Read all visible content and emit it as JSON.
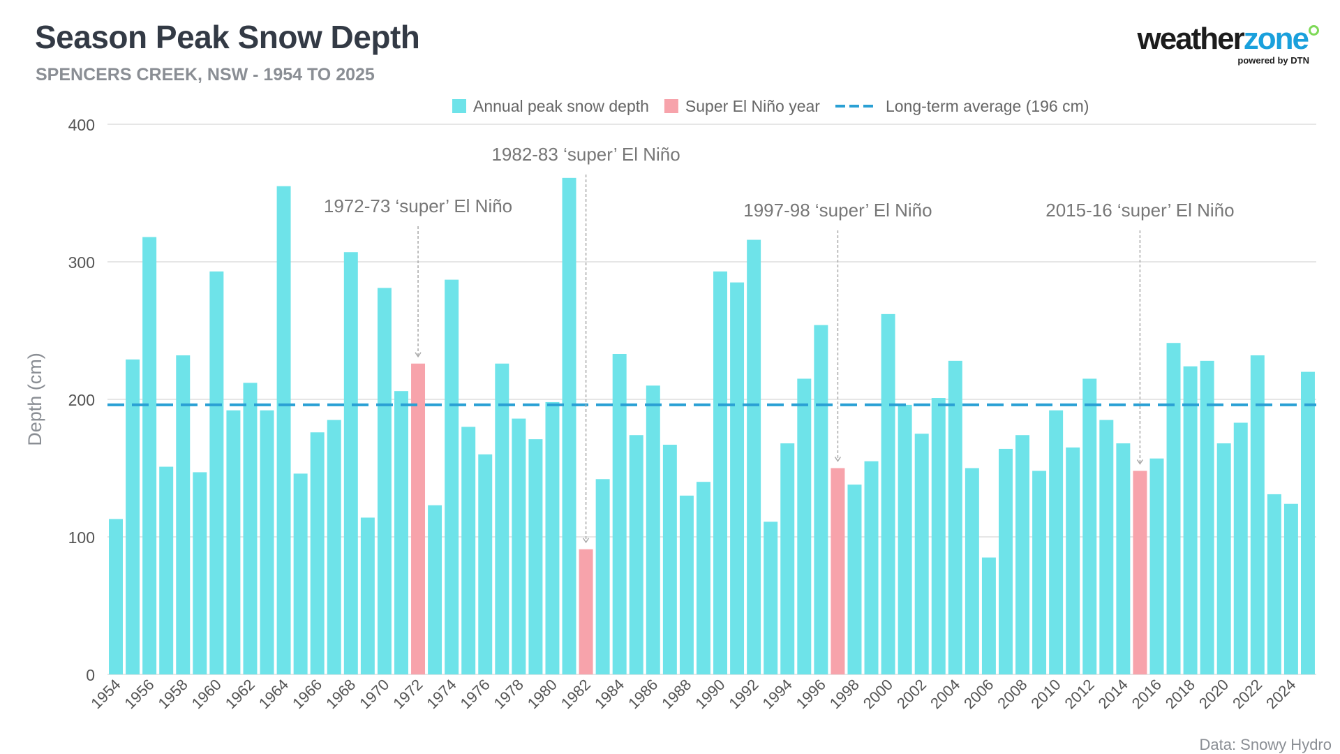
{
  "header": {
    "title": "Season Peak Snow Depth",
    "subtitle": "SPENCERS CREEK, NSW - 1954 TO 2025"
  },
  "logo": {
    "word_part1": "weather",
    "word_part2": "zone",
    "tagline": "powered by DTN"
  },
  "source": "Data: Snowy Hydro",
  "colors": {
    "bar": "#6ee3e9",
    "super_bar": "#f7a3ab",
    "average_line": "#2aa0d4",
    "grid": "#dddddd",
    "text": "#555555",
    "annotation": "#777777"
  },
  "chart_data": {
    "type": "bar",
    "xlabel": "",
    "ylabel": "Depth (cm)",
    "ylim": [
      0,
      400
    ],
    "yticks": [
      0,
      100,
      200,
      300,
      400
    ],
    "grid": true,
    "legend_position": "top",
    "legend": [
      {
        "label": "Annual peak snow depth",
        "kind": "bar"
      },
      {
        "label": "Super El Niño year",
        "kind": "super"
      },
      {
        "label": "Long-term average (196 cm)",
        "kind": "line"
      }
    ],
    "average": 196,
    "categories": [
      1954,
      1955,
      1956,
      1957,
      1958,
      1959,
      1960,
      1961,
      1962,
      1963,
      1964,
      1965,
      1966,
      1967,
      1968,
      1969,
      1970,
      1971,
      1972,
      1973,
      1974,
      1975,
      1976,
      1977,
      1978,
      1979,
      1980,
      1981,
      1982,
      1983,
      1984,
      1985,
      1986,
      1987,
      1988,
      1989,
      1990,
      1991,
      1992,
      1993,
      1994,
      1995,
      1996,
      1997,
      1998,
      1999,
      2000,
      2001,
      2002,
      2003,
      2004,
      2005,
      2006,
      2007,
      2008,
      2009,
      2010,
      2011,
      2012,
      2013,
      2014,
      2015,
      2016,
      2017,
      2018,
      2019,
      2020,
      2021,
      2022,
      2023,
      2024,
      2025
    ],
    "tick_labels": [
      "1954",
      "1956",
      "1958",
      "1960",
      "1962",
      "1964",
      "1966",
      "1968",
      "1970",
      "1972",
      "1974",
      "1976",
      "1978",
      "1980",
      "1982",
      "1984",
      "1986",
      "1988",
      "1990",
      "1992",
      "1994",
      "1996",
      "1998",
      "2000",
      "2002",
      "2004",
      "2006",
      "2008",
      "2010",
      "2012",
      "2014",
      "2016",
      "2018",
      "2020",
      "2022",
      "2024"
    ],
    "values": [
      113,
      229,
      318,
      151,
      232,
      147,
      293,
      192,
      212,
      192,
      355,
      146,
      176,
      185,
      307,
      114,
      281,
      206,
      226,
      123,
      287,
      180,
      160,
      226,
      186,
      171,
      198,
      361,
      91,
      142,
      233,
      174,
      210,
      167,
      130,
      140,
      293,
      285,
      316,
      111,
      168,
      215,
      254,
      150,
      138,
      155,
      262,
      196,
      175,
      201,
      228,
      150,
      85,
      164,
      174,
      148,
      192,
      165,
      215,
      185,
      168,
      148,
      157,
      241,
      224,
      228,
      168,
      183,
      232,
      131,
      124,
      220
    ],
    "super_el_nino_years": [
      1972,
      1982,
      1997,
      2015
    ],
    "annotations": [
      {
        "text": "1972-73 ‘super’ El Niño",
        "year": 1972
      },
      {
        "text": "1982-83 ‘super’ El Niño",
        "year": 1982
      },
      {
        "text": "1997-98 ‘super’ El Niño",
        "year": 1997
      },
      {
        "text": "2015-16 ‘super’ El Niño",
        "year": 2015
      }
    ]
  }
}
